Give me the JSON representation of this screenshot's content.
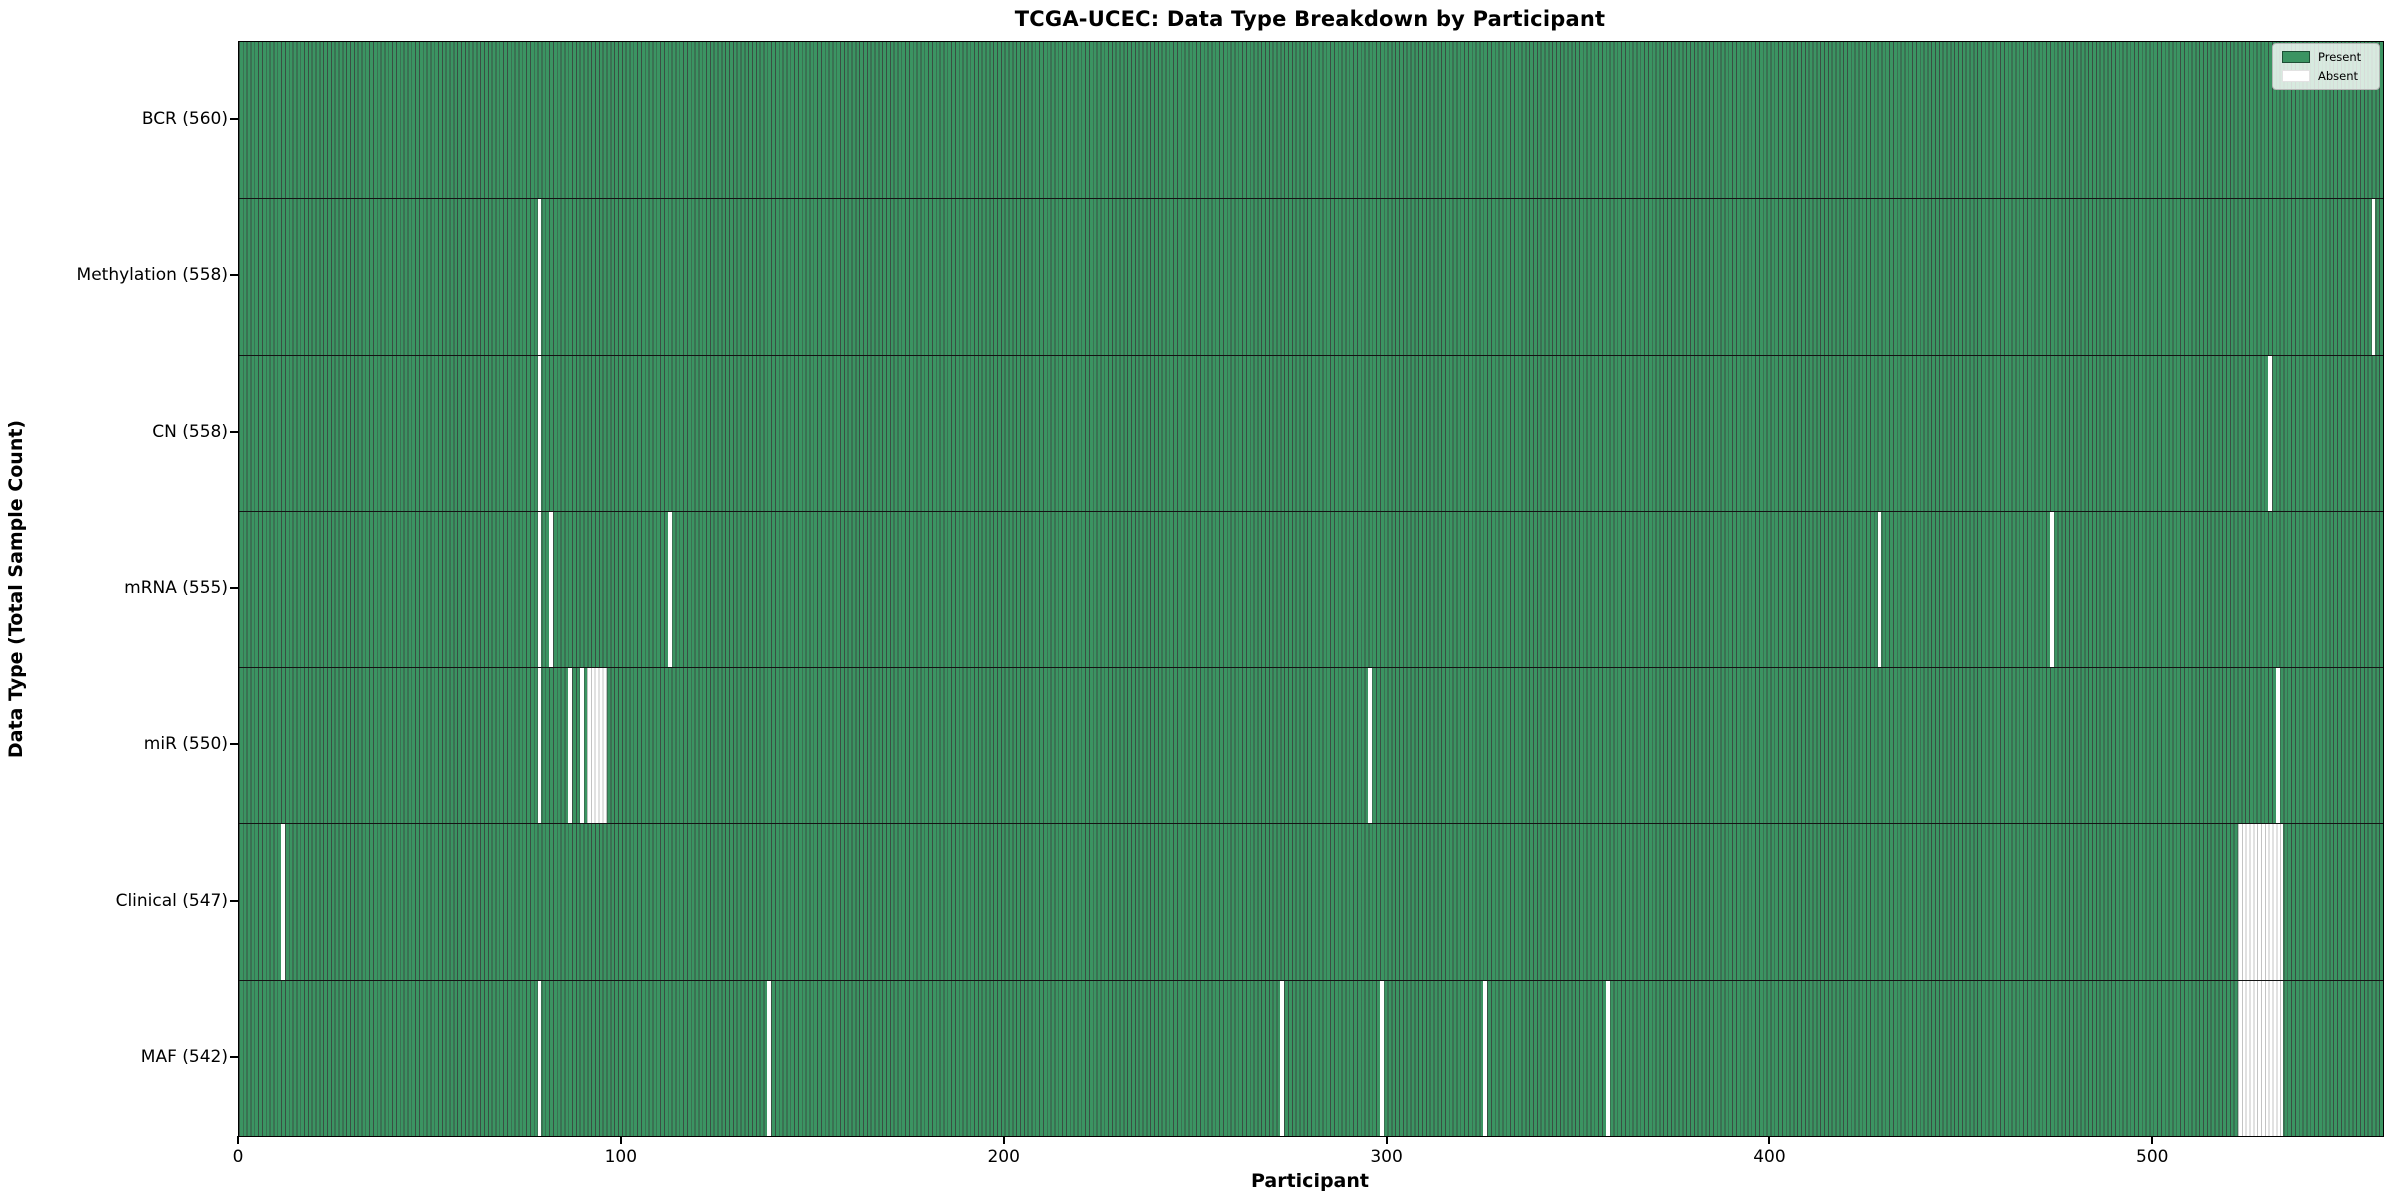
{
  "title": "TCGA-UCEC: Data Type Breakdown by Participant",
  "legend": {
    "present_label": "Present",
    "absent_label": "Absent"
  },
  "colors": {
    "present": "#3b9462",
    "absent": "#ffffff",
    "bar_edge": "rgba(13,40,26,0.82)"
  },
  "chart_data": {
    "type": "heatmap",
    "title": "TCGA-UCEC: Data Type Breakdown by Participant",
    "xlabel": "Participant",
    "ylabel": "Data Type (Total Sample Count)",
    "x_ticks": [
      0,
      100,
      200,
      300,
      400,
      500
    ],
    "xlim": [
      0,
      560
    ],
    "n_participants": 560,
    "grid": false,
    "legend_position": "upper right",
    "legend_entries": [
      {
        "label": "Present",
        "color": "#3b9462"
      },
      {
        "label": "Absent",
        "color": "#ffffff"
      }
    ],
    "rows": [
      {
        "label": "BCR (560)",
        "data_type": "BCR",
        "total": 560,
        "absent_participants": []
      },
      {
        "label": "Methylation (558)",
        "data_type": "Methylation",
        "total": 558,
        "absent_participants": [
          78,
          557
        ]
      },
      {
        "label": "CN (558)",
        "data_type": "CN",
        "total": 558,
        "absent_participants": [
          78,
          530
        ]
      },
      {
        "label": "mRNA (555)",
        "data_type": "mRNA",
        "total": 555,
        "absent_participants": [
          78,
          81,
          112,
          428,
          473
        ]
      },
      {
        "label": "miR (550)",
        "data_type": "miR",
        "total": 550,
        "absent_participants": [
          78,
          86,
          89,
          91,
          92,
          93,
          94,
          95,
          295,
          532
        ]
      },
      {
        "label": "Clinical (547)",
        "data_type": "Clinical",
        "total": 547,
        "absent_participants": [
          11,
          522,
          523,
          524,
          525,
          526,
          527,
          528,
          529,
          530,
          531,
          532,
          533
        ]
      },
      {
        "label": "MAF (542)",
        "data_type": "MAF",
        "total": 542,
        "absent_participants": [
          78,
          138,
          272,
          298,
          325,
          357,
          522,
          523,
          524,
          525,
          526,
          527,
          528,
          529,
          530,
          531,
          532,
          533
        ]
      }
    ]
  }
}
